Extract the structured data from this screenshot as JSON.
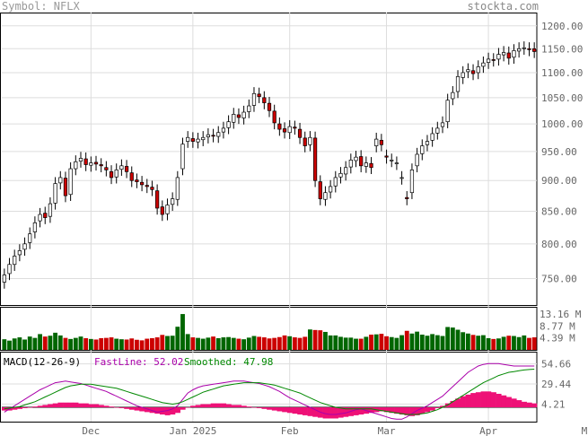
{
  "header": {
    "symbol_label": "Symbol: NFLX",
    "brand": "stockta.com"
  },
  "chart_data": {
    "type": "candlestick",
    "ticker": "NFLX",
    "price_axis": {
      "ticks": [
        "1200.00",
        "1150.00",
        "1100.00",
        "1050.00",
        "1000.00",
        "950.00",
        "900.00",
        "850.00",
        "800.00",
        "750.00"
      ],
      "scale": "log",
      "range": [
        714,
        1230
      ]
    },
    "volume_axis": {
      "ticks": [
        "13.16 M",
        "8.77 M",
        "4.39 M"
      ],
      "range": [
        0,
        14.5
      ]
    },
    "macd_axis": {
      "ticks": [
        "54.66",
        "29.44",
        "4.21"
      ],
      "range": [
        -18,
        70
      ]
    },
    "x_labels": [
      "Dec",
      "Jan 2025",
      "Feb",
      "Mar",
      "Apr",
      "Mav"
    ],
    "x_label_index": [
      17,
      37,
      56,
      75,
      95,
      115
    ],
    "legend": {
      "macd": "MACD(12-26-9)",
      "fast": "FastLine: 52.02",
      "smoothed": "Smoothed: 47.98"
    },
    "colors": {
      "up": "#ffffff",
      "down": "#cc0000",
      "vol_up": "#006600",
      "vol_down": "#cc0000",
      "fast": "#aa00aa",
      "smoothed": "#008800",
      "hist": "#ee1177",
      "grid": "#dddddd"
    },
    "closes": [
      755,
      770,
      782,
      790,
      800,
      815,
      832,
      845,
      840,
      862,
      895,
      905,
      875,
      920,
      932,
      938,
      927,
      930,
      928,
      925,
      918,
      905,
      918,
      925,
      915,
      900,
      898,
      893,
      890,
      885,
      855,
      845,
      860,
      870,
      905,
      963,
      975,
      968,
      972,
      975,
      980,
      978,
      984,
      992,
      1004,
      1018,
      1012,
      1022,
      1034,
      1058,
      1052,
      1040,
      1025,
      1002,
      990,
      985,
      995,
      992,
      975,
      960,
      975,
      900,
      870,
      880,
      890,
      905,
      912,
      922,
      935,
      940,
      925,
      930,
      922,
      972,
      962,
      940,
      935,
      930,
      905,
      870,
      918,
      945,
      960,
      968,
      982,
      992,
      1002,
      1045,
      1060,
      1092,
      1100,
      1106,
      1098,
      1112,
      1120,
      1128,
      1126,
      1138,
      1142,
      1130,
      1146,
      1150,
      1152,
      1148,
      1144
    ],
    "opens": [
      745,
      757,
      770,
      784,
      792,
      802,
      818,
      835,
      847,
      842,
      863,
      896,
      904,
      877,
      920,
      933,
      937,
      926,
      931,
      927,
      922,
      915,
      906,
      919,
      924,
      913,
      901,
      897,
      892,
      889,
      883,
      857,
      846,
      861,
      869,
      920,
      968,
      973,
      967,
      971,
      976,
      979,
      977,
      985,
      993,
      1003,
      1017,
      1011,
      1023,
      1035,
      1057,
      1050,
      1039,
      1024,
      1000,
      991,
      984,
      994,
      990,
      974,
      962,
      974,
      898,
      869,
      881,
      891,
      906,
      911,
      923,
      934,
      941,
      924,
      929,
      960,
      970,
      942,
      934,
      929,
      904,
      872,
      880,
      925,
      946,
      962,
      970,
      983,
      995,
      1004,
      1048,
      1062,
      1090,
      1102,
      1104,
      1100,
      1113,
      1121,
      1127,
      1128,
      1137,
      1141,
      1132,
      1145,
      1151,
      1150,
      1150
    ],
    "volume": [
      3.9,
      3.4,
      4.2,
      4.6,
      3.8,
      4.9,
      4.4,
      5.8,
      4.9,
      5.2,
      6.3,
      5.3,
      4.4,
      4.0,
      4.4,
      4.9,
      4.3,
      4.0,
      3.8,
      4.3,
      4.4,
      4.6,
      4.1,
      3.9,
      3.8,
      4.2,
      3.7,
      3.5,
      4.1,
      4.3,
      4.6,
      5.5,
      5.1,
      5.2,
      8.5,
      13.16,
      5.8,
      4.6,
      4.4,
      4.1,
      4.5,
      4.9,
      4.3,
      4.6,
      4.7,
      4.4,
      4.1,
      3.9,
      4.5,
      5.1,
      4.8,
      4.6,
      4.2,
      4.4,
      4.7,
      5.3,
      5.0,
      4.6,
      4.4,
      4.8,
      7.5,
      7.3,
      7.2,
      6.6,
      5.3,
      5.3,
      4.8,
      4.5,
      4.5,
      4.1,
      4.1,
      4.8,
      5.6,
      5.7,
      5.9,
      5.0,
      4.7,
      4.4,
      5.4,
      7.0,
      6.0,
      6.7,
      5.6,
      5.2,
      5.8,
      5.4,
      5.1,
      8.4,
      8.2,
      7.4,
      6.5,
      6.0,
      5.5,
      5.2,
      5.4,
      4.3,
      4.0,
      4.2,
      4.8,
      5.2,
      5.1,
      4.7,
      5.3,
      4.4,
      4.6
    ],
    "macd_hist": [
      -4,
      -4,
      -3,
      -2,
      -1,
      0,
      1,
      2,
      3,
      4,
      5,
      6,
      6,
      6,
      6,
      5,
      5,
      4,
      4,
      3,
      2,
      1,
      0,
      -1,
      -2,
      -3,
      -4,
      -5,
      -6,
      -7,
      -8,
      -9,
      -10,
      -9,
      -7,
      -3,
      0,
      2,
      3,
      4,
      4,
      5,
      5,
      5,
      4,
      3,
      3,
      2,
      1,
      0,
      -1,
      -2,
      -3,
      -4,
      -5,
      -6,
      -7,
      -8,
      -9,
      -10,
      -11,
      -12,
      -13,
      -14,
      -14,
      -14,
      -13,
      -12,
      -11,
      -10,
      -9,
      -8,
      -7,
      -6,
      -5,
      -6,
      -7,
      -8,
      -9,
      -10,
      -11,
      -10,
      -8,
      -6,
      -4,
      -1,
      2,
      5,
      8,
      11,
      14,
      16,
      18,
      19,
      20,
      20,
      19,
      17,
      15,
      13,
      11,
      9,
      7,
      6,
      5
    ],
    "macd_fast": [
      -6,
      -2,
      2,
      6,
      10,
      14,
      18,
      22,
      25,
      28,
      31,
      32,
      33,
      32,
      31,
      30,
      28,
      26,
      24,
      22,
      20,
      17,
      14,
      11,
      8,
      5,
      2,
      0,
      -2,
      -4,
      -6,
      -5,
      -4,
      -2,
      2,
      10,
      18,
      22,
      25,
      27,
      28,
      29,
      30,
      31,
      32,
      33,
      33,
      33,
      32,
      31,
      30,
      28,
      26,
      23,
      20,
      16,
      12,
      9,
      6,
      3,
      0,
      -3,
      -6,
      -8,
      -9,
      -9,
      -8,
      -7,
      -5,
      -3,
      -2,
      -4,
      -6,
      -8,
      -10,
      -12,
      -14,
      -15,
      -15,
      -12,
      -8,
      -4,
      -1,
      2,
      6,
      10,
      14,
      20,
      26,
      32,
      38,
      44,
      48,
      52,
      54,
      55,
      55,
      55,
      54,
      53,
      52,
      52,
      52,
      52,
      52
    ],
    "macd_smoothed": [
      -2,
      -1,
      0,
      1,
      3,
      5,
      7,
      10,
      13,
      16,
      19,
      22,
      25,
      27,
      28,
      29,
      29,
      29,
      28,
      27,
      26,
      25,
      24,
      22,
      20,
      18,
      16,
      14,
      12,
      10,
      8,
      6,
      5,
      4,
      5,
      7,
      10,
      13,
      16,
      19,
      21,
      23,
      25,
      27,
      28,
      29,
      30,
      31,
      31,
      31,
      31,
      30,
      29,
      28,
      26,
      24,
      22,
      20,
      18,
      15,
      12,
      9,
      6,
      4,
      2,
      0,
      -1,
      -2,
      -2,
      -2,
      -2,
      -2,
      -2,
      -3,
      -4,
      -5,
      -6,
      -7,
      -8,
      -9,
      -9,
      -9,
      -8,
      -7,
      -5,
      -3,
      0,
      3,
      7,
      11,
      15,
      19,
      23,
      27,
      31,
      34,
      37,
      40,
      42,
      44,
      45,
      46,
      47,
      47.5,
      48
    ]
  }
}
